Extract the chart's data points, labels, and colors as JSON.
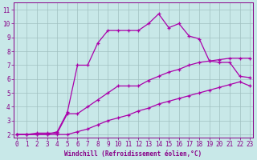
{
  "bg_color": "#c8e8e8",
  "line_color": "#aa00aa",
  "grid_color": "#a0c0c0",
  "tick_color": "#880088",
  "xlabel": "Windchill (Refroidissement éolien,°C)",
  "xlim": [
    -0.3,
    23.3
  ],
  "ylim": [
    1.8,
    11.5
  ],
  "xticks": [
    0,
    1,
    2,
    3,
    4,
    5,
    6,
    7,
    8,
    9,
    10,
    11,
    12,
    13,
    14,
    15,
    16,
    17,
    18,
    19,
    20,
    21,
    22,
    23
  ],
  "yticks": [
    2,
    3,
    4,
    5,
    6,
    7,
    8,
    9,
    10,
    11
  ],
  "line_wavy_x": [
    0,
    1,
    2,
    3,
    4,
    5,
    6,
    7,
    8,
    9,
    10,
    11,
    12,
    13,
    14,
    15,
    16,
    17,
    18,
    19,
    20,
    21,
    22,
    23
  ],
  "line_wavy_y": [
    2.0,
    2.0,
    2.0,
    2.0,
    2.2,
    3.6,
    7.0,
    7.0,
    8.6,
    9.5,
    9.5,
    9.5,
    9.5,
    10.0,
    10.7,
    9.7,
    10.0,
    9.1,
    8.9,
    7.3,
    7.2,
    7.2,
    6.2,
    6.1
  ],
  "line_upper_x": [
    0,
    1,
    2,
    3,
    4,
    5,
    6,
    7,
    8,
    9,
    10,
    11,
    12,
    13,
    14,
    15,
    16,
    17,
    18,
    19,
    20,
    21,
    22,
    23
  ],
  "line_upper_y": [
    2.0,
    2.0,
    2.1,
    2.1,
    2.1,
    3.5,
    3.5,
    4.0,
    4.5,
    5.0,
    5.5,
    5.5,
    5.5,
    5.9,
    6.2,
    6.5,
    6.7,
    7.0,
    7.2,
    7.3,
    7.4,
    7.5,
    7.5,
    7.5
  ],
  "line_lower_x": [
    0,
    1,
    2,
    3,
    4,
    5,
    6,
    7,
    8,
    9,
    10,
    11,
    12,
    13,
    14,
    15,
    16,
    17,
    18,
    19,
    20,
    21,
    22,
    23
  ],
  "line_lower_y": [
    2.0,
    2.0,
    2.0,
    2.0,
    2.0,
    2.0,
    2.2,
    2.4,
    2.7,
    3.0,
    3.2,
    3.4,
    3.7,
    3.9,
    4.2,
    4.4,
    4.6,
    4.8,
    5.0,
    5.2,
    5.4,
    5.6,
    5.8,
    5.5
  ]
}
